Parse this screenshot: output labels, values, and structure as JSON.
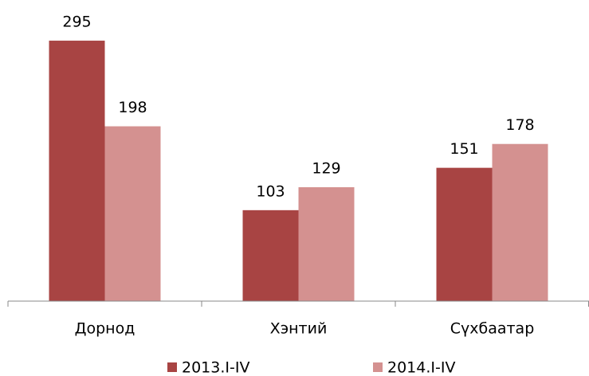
{
  "chart_data": {
    "type": "bar",
    "categories": [
      "Дорнод",
      "Хэнтий",
      "Сүхбаатар"
    ],
    "series": [
      {
        "name": "2013.I-IV",
        "color": "#a84443",
        "values": [
          295,
          103,
          151
        ]
      },
      {
        "name": "2014.I-IV",
        "color": "#d49190",
        "values": [
          198,
          129,
          178
        ]
      }
    ],
    "ylim": [
      0,
      300
    ]
  }
}
